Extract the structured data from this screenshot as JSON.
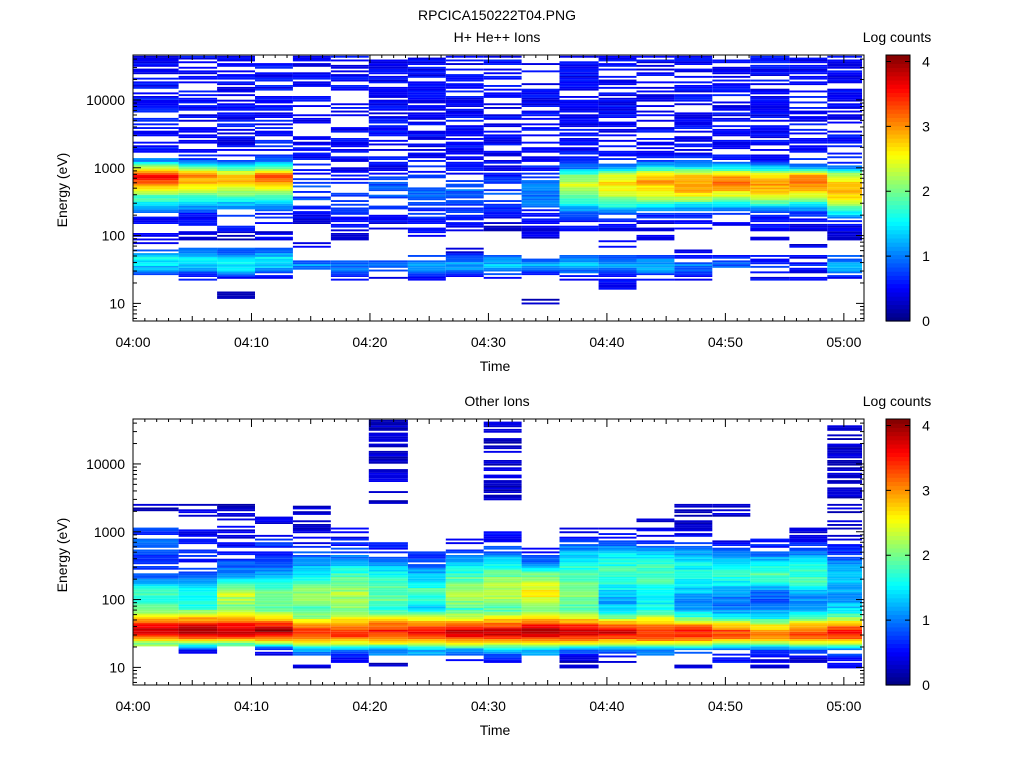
{
  "figure": {
    "title": "RPCICA150222T04.PNG"
  },
  "panels": [
    {
      "title": "H+ He++ Ions",
      "xlabel": "Time",
      "ylabel": "Energy (eV)",
      "colorbar_label": "Log counts"
    },
    {
      "title": "Other Ions",
      "xlabel": "Time",
      "ylabel": "Energy (eV)",
      "colorbar_label": "Log counts"
    }
  ],
  "chart_data": [
    {
      "type": "heatmap",
      "title": "H+ He++ Ions",
      "xlabel": "Time",
      "ylabel": "Energy (eV)",
      "x_ticks": [
        "04:00",
        "04:10",
        "04:20",
        "04:30",
        "04:40",
        "04:50",
        "05:00"
      ],
      "x_range_minutes": [
        0,
        61.7
      ],
      "y_scale": "log",
      "y_range": [
        5.5,
        46000
      ],
      "y_ticks": [
        "10",
        "100",
        "1000",
        "10000"
      ],
      "colorbar": {
        "label": "Log counts",
        "range": [
          0,
          4.1
        ],
        "ticks": [
          "0",
          "1",
          "2",
          "3",
          "4"
        ],
        "colormap": "jet"
      },
      "time_bins_start_min": [
        0,
        3.85,
        7.1,
        10.3,
        13.5,
        16.7,
        19.9,
        23.2,
        26.4,
        29.6,
        32.8,
        36.0,
        39.3,
        42.5,
        45.7,
        48.9,
        52.1,
        55.4,
        58.6
      ],
      "profile": [
        {
          "e": 10,
          "v": [
            -1,
            -1,
            -1,
            -1,
            -1,
            -1,
            -1,
            -1,
            -1,
            -1,
            0.2,
            -1,
            -1,
            -1,
            -1,
            -1,
            -1,
            -1,
            -1
          ]
        },
        {
          "e": 13,
          "v": [
            -1,
            -1,
            0.3,
            -1,
            -1,
            -1,
            -1,
            -1,
            -1,
            -1,
            -1,
            -1,
            -1,
            -1,
            -1,
            -1,
            -1,
            -1,
            -1
          ]
        },
        {
          "e": 19,
          "v": [
            -1,
            -1,
            -1,
            -1,
            -1,
            -1,
            -1,
            -1,
            -1,
            -1,
            -1,
            -1,
            0.5,
            -1,
            -1,
            -1,
            -1,
            -1,
            -1
          ]
        },
        {
          "e": 24,
          "v": [
            0.6,
            0.5,
            0.6,
            0.5,
            0.5,
            0.6,
            0.5,
            0.6,
            0.5,
            0.5,
            0.5,
            0.5,
            0.5,
            0.5,
            0.5,
            0.5,
            0.5,
            0.5,
            0.5
          ]
        },
        {
          "e": 30,
          "v": [
            1.2,
            1.0,
            1.3,
            1.0,
            0.8,
            0.9,
            0.7,
            0.9,
            1.0,
            0.9,
            0.8,
            1.0,
            1.0,
            1.0,
            0.9,
            0.8,
            0.6,
            0.5,
            1.1
          ]
        },
        {
          "e": 37,
          "v": [
            1.4,
            1.3,
            1.5,
            1.4,
            1.1,
            1.0,
            0.9,
            1.1,
            1.2,
            1.3,
            1.3,
            1.3,
            1.2,
            1.3,
            1.0,
            0.9,
            0.8,
            0.6,
            1.4
          ]
        },
        {
          "e": 47,
          "v": [
            1.6,
            1.5,
            1.4,
            1.5,
            0.5,
            -1,
            -1,
            0.7,
            0.8,
            1.0,
            0.8,
            0.9,
            0.8,
            0.9,
            0.7,
            0.6,
            0.6,
            0.5,
            0.8
          ]
        },
        {
          "e": 58,
          "v": [
            0.8,
            1.0,
            0.8,
            0.9,
            -1,
            -1,
            -1,
            -1,
            0.4,
            -1,
            -1,
            -1,
            -1,
            -1,
            0.5,
            -1,
            -1,
            -1,
            -1
          ]
        },
        {
          "e": 75,
          "v": [
            0.5,
            -1,
            -1,
            -1,
            0.4,
            -1,
            -1,
            -1,
            -1,
            -1,
            -1,
            -1,
            0.4,
            -1,
            -1,
            -1,
            -1,
            0.4,
            -1
          ]
        },
        {
          "e": 100,
          "v": [
            0.4,
            0.4,
            0.3,
            0.4,
            -1,
            0.4,
            -1,
            0.4,
            -1,
            -1,
            0.4,
            -1,
            -1,
            0.4,
            -1,
            -1,
            0.4,
            -1,
            0.4
          ]
        },
        {
          "e": 130,
          "v": [
            -1,
            0.4,
            0.5,
            -1,
            0.3,
            0.5,
            0.4,
            0.6,
            0.5,
            0.3,
            0.4,
            0.5,
            0.5,
            0.4,
            0.5,
            0.4,
            0.5,
            0.4,
            0.4
          ]
        },
        {
          "e": 170,
          "v": [
            0.5,
            0.5,
            0.6,
            0.5,
            0.4,
            0.5,
            0.5,
            0.6,
            0.6,
            0.5,
            0.5,
            0.6,
            0.6,
            0.5,
            0.6,
            0.5,
            0.5,
            0.5,
            0.6
          ]
        },
        {
          "e": 220,
          "v": [
            0.9,
            0.7,
            0.7,
            0.7,
            0.6,
            0.6,
            0.6,
            0.7,
            0.7,
            0.6,
            0.6,
            0.9,
            0.9,
            0.8,
            0.8,
            0.7,
            0.7,
            0.8,
            1.6
          ]
        },
        {
          "e": 280,
          "v": [
            1.4,
            1.3,
            1.2,
            1.3,
            0.7,
            0.6,
            0.7,
            0.8,
            0.8,
            0.7,
            0.9,
            1.4,
            1.7,
            1.6,
            1.5,
            1.4,
            1.6,
            1.5,
            2.1
          ]
        },
        {
          "e": 360,
          "v": [
            1.8,
            1.8,
            1.7,
            1.7,
            0.8,
            0.7,
            0.8,
            0.9,
            0.9,
            0.8,
            1.0,
            1.9,
            2.2,
            2.2,
            2.3,
            2.2,
            2.3,
            2.3,
            2.6
          ]
        },
        {
          "e": 470,
          "v": [
            2.4,
            2.3,
            2.3,
            2.3,
            0.8,
            0.8,
            0.9,
            0.9,
            0.9,
            0.8,
            1.1,
            2.3,
            2.5,
            2.6,
            2.9,
            2.8,
            2.8,
            2.9,
            2.9
          ]
        },
        {
          "e": 600,
          "v": [
            3.2,
            2.9,
            2.8,
            2.9,
            0.7,
            0.7,
            0.8,
            0.8,
            0.8,
            0.7,
            1.0,
            2.4,
            2.7,
            2.9,
            3.0,
            3.1,
            3.0,
            3.1,
            2.8
          ]
        },
        {
          "e": 780,
          "v": [
            3.6,
            3.0,
            2.7,
            3.3,
            0.6,
            0.6,
            0.6,
            0.7,
            0.6,
            0.6,
            0.7,
            2.0,
            2.4,
            2.8,
            2.8,
            2.9,
            2.7,
            2.9,
            2.3
          ]
        },
        {
          "e": 1000,
          "v": [
            2.3,
            2.0,
            1.8,
            2.0,
            0.5,
            0.5,
            0.5,
            0.6,
            0.5,
            0.5,
            0.6,
            1.0,
            1.2,
            1.5,
            1.5,
            1.4,
            1.4,
            1.2,
            1.0
          ]
        },
        {
          "e": 1300,
          "v": [
            1.0,
            0.8,
            0.7,
            0.9,
            0.5,
            0.5,
            0.5,
            0.5,
            0.5,
            0.5,
            0.5,
            0.6,
            0.6,
            0.7,
            0.7,
            0.7,
            0.6,
            0.6,
            0.6
          ]
        },
        {
          "e": 1700,
          "v": [
            0.6,
            0.5,
            0.5,
            0.6,
            0.5,
            0.5,
            0.5,
            0.5,
            0.5,
            0.5,
            0.5,
            0.5,
            0.5,
            0.5,
            0.5,
            0.5,
            0.5,
            0.5,
            0.5
          ]
        },
        {
          "e": 46000,
          "v": [
            0.5,
            0.5,
            0.5,
            0.5,
            0.5,
            0.5,
            0.5,
            0.5,
            0.5,
            0.5,
            0.5,
            0.5,
            0.5,
            0.5,
            0.5,
            0.5,
            0.5,
            0.5,
            0.5
          ]
        }
      ]
    },
    {
      "type": "heatmap",
      "title": "Other Ions",
      "xlabel": "Time",
      "ylabel": "Energy (eV)",
      "x_ticks": [
        "04:00",
        "04:10",
        "04:20",
        "04:30",
        "04:40",
        "04:50",
        "05:00"
      ],
      "x_range_minutes": [
        0,
        61.7
      ],
      "y_scale": "log",
      "y_range": [
        5.5,
        46000
      ],
      "y_ticks": [
        "10",
        "100",
        "1000",
        "10000"
      ],
      "colorbar": {
        "label": "Log counts",
        "range": [
          0,
          4.1
        ],
        "ticks": [
          "0",
          "1",
          "2",
          "3",
          "4"
        ],
        "colormap": "jet"
      },
      "time_bins_start_min": [
        0,
        3.85,
        7.1,
        10.3,
        13.5,
        16.7,
        19.9,
        23.2,
        26.4,
        29.6,
        32.8,
        36.0,
        39.3,
        42.5,
        45.7,
        48.9,
        52.1,
        55.4,
        58.6
      ],
      "profile": [
        {
          "e": 10,
          "v": [
            -1,
            -1,
            -1,
            -1,
            0.3,
            -1,
            0.3,
            -1,
            -1,
            -1,
            -1,
            0.3,
            -1,
            -1,
            0.4,
            -1,
            0.3,
            -1,
            0.4
          ]
        },
        {
          "e": 13,
          "v": [
            -1,
            -1,
            -1,
            -1,
            -1,
            0.4,
            -1,
            -1,
            0.5,
            0.5,
            -1,
            0.3,
            0.4,
            -1,
            -1,
            0.5,
            0.5,
            0.4,
            0.5
          ]
        },
        {
          "e": 18,
          "v": [
            -1,
            0.5,
            -1,
            0.4,
            1.1,
            1.0,
            1.0,
            1.2,
            1.1,
            1.2,
            1.1,
            1.0,
            0.9,
            1.0,
            0.8,
            0.8,
            0.7,
            0.8,
            0.9
          ]
        },
        {
          "e": 23,
          "v": [
            2.1,
            2.2,
            2.0,
            2.2,
            2.4,
            2.5,
            2.6,
            2.5,
            2.7,
            2.7,
            2.7,
            2.6,
            2.5,
            2.6,
            2.5,
            2.4,
            2.3,
            2.4,
            2.4
          ]
        },
        {
          "e": 28,
          "v": [
            3.3,
            3.5,
            3.4,
            3.4,
            3.2,
            3.3,
            3.3,
            3.4,
            3.5,
            3.5,
            3.5,
            3.4,
            3.4,
            3.3,
            3.3,
            3.2,
            3.0,
            3.2,
            3.4
          ]
        },
        {
          "e": 34,
          "v": [
            3.9,
            4.0,
            3.8,
            4.0,
            3.4,
            3.3,
            3.5,
            3.7,
            3.8,
            3.9,
            4.0,
            3.9,
            3.8,
            3.5,
            3.5,
            3.3,
            3.0,
            3.3,
            3.6
          ]
        },
        {
          "e": 42,
          "v": [
            3.5,
            3.6,
            3.6,
            3.5,
            3.0,
            3.1,
            3.2,
            3.1,
            3.2,
            3.3,
            3.5,
            3.4,
            3.2,
            3.0,
            3.0,
            2.8,
            2.5,
            2.8,
            3.0
          ]
        },
        {
          "e": 55,
          "v": [
            2.6,
            2.8,
            2.9,
            2.6,
            2.2,
            2.5,
            2.4,
            2.3,
            2.3,
            2.5,
            2.6,
            2.4,
            2.0,
            2.3,
            1.8,
            1.6,
            1.5,
            1.8,
            2.0
          ]
        },
        {
          "e": 72,
          "v": [
            1.9,
            1.8,
            2.0,
            1.9,
            1.8,
            2.0,
            1.7,
            1.4,
            1.8,
            1.8,
            2.0,
            1.8,
            1.3,
            1.6,
            1.2,
            1.0,
            1.0,
            1.2,
            1.4
          ]
        },
        {
          "e": 95,
          "v": [
            1.7,
            1.6,
            2.2,
            1.9,
            2.1,
            2.2,
            1.9,
            1.6,
            2.1,
            2.2,
            2.4,
            2.0,
            1.2,
            1.5,
            1.1,
            0.9,
            0.8,
            1.0,
            1.2
          ]
        },
        {
          "e": 130,
          "v": [
            1.8,
            1.7,
            2.4,
            2.0,
            2.1,
            2.2,
            1.9,
            1.9,
            2.3,
            2.4,
            2.6,
            2.0,
            1.4,
            1.6,
            1.3,
            1.2,
            1.0,
            1.3,
            1.2
          ]
        },
        {
          "e": 180,
          "v": [
            1.2,
            1.1,
            1.6,
            1.5,
            1.8,
            2.0,
            1.8,
            1.5,
            2.0,
            2.1,
            2.3,
            1.9,
            1.7,
            1.8,
            1.6,
            1.5,
            1.6,
            1.8,
            1.3
          ]
        },
        {
          "e": 250,
          "v": [
            0.8,
            0.8,
            1.0,
            1.1,
            1.5,
            1.7,
            1.5,
            1.2,
            1.7,
            1.9,
            1.9,
            1.8,
            1.8,
            1.8,
            1.6,
            1.7,
            1.9,
            1.8,
            1.2
          ]
        },
        {
          "e": 350,
          "v": [
            0.7,
            0.6,
            0.8,
            0.8,
            1.1,
            1.3,
            1.1,
            0.8,
            1.3,
            1.5,
            1.0,
            1.6,
            1.6,
            1.7,
            1.5,
            1.4,
            1.4,
            1.5,
            1.0
          ]
        },
        {
          "e": 500,
          "v": [
            0.8,
            0.6,
            0.6,
            0.7,
            0.8,
            0.8,
            0.7,
            0.6,
            0.7,
            0.9,
            0.6,
            1.2,
            1.4,
            1.4,
            1.2,
            1.0,
            0.9,
            1.0,
            0.7
          ]
        },
        {
          "e": 700,
          "v": [
            1.0,
            0.5,
            0.5,
            0.6,
            0.5,
            0.6,
            0.5,
            -1,
            0.5,
            0.6,
            -1,
            0.7,
            0.8,
            0.7,
            0.6,
            0.5,
            0.5,
            0.6,
            0.5
          ]
        },
        {
          "e": 950,
          "v": [
            0.7,
            0.4,
            0.4,
            0.5,
            0.4,
            0.4,
            -1,
            -1,
            -1,
            0.5,
            -1,
            0.4,
            0.5,
            0.4,
            0.4,
            -1,
            -1,
            0.4,
            0.4
          ]
        },
        {
          "e": 1400,
          "v": [
            -1,
            -1,
            0.4,
            0.4,
            0.3,
            -1,
            -1,
            -1,
            -1,
            -1,
            -1,
            -1,
            -1,
            0.4,
            0.3,
            -1,
            -1,
            -1,
            0.4
          ]
        },
        {
          "e": 2000,
          "v": [
            0.3,
            0.3,
            0.3,
            -1,
            0.3,
            -1,
            -1,
            -1,
            -1,
            -1,
            -1,
            -1,
            -1,
            -1,
            0.3,
            0.3,
            -1,
            -1,
            0.3
          ]
        },
        {
          "e": 3200,
          "v": [
            -1,
            -1,
            -1,
            -1,
            -1,
            -1,
            0.3,
            -1,
            -1,
            0.3,
            -1,
            -1,
            -1,
            -1,
            -1,
            -1,
            -1,
            -1,
            0.3
          ]
        }
      ]
    }
  ]
}
